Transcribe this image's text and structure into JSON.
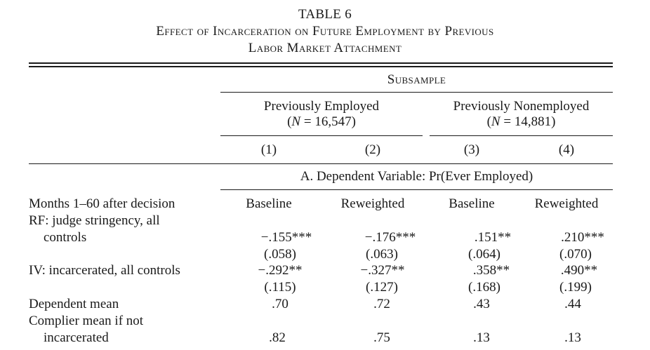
{
  "table": {
    "number": "TABLE 6",
    "caption_line1": "Effect of Incarceration on Future Employment by Previous",
    "caption_line2": "Labor Market Attachment",
    "subsample_header": "Subsample",
    "groups": [
      {
        "label": "Previously Employed",
        "n_prefix": "(",
        "n_var": "N",
        "n_value": " = 16,547)"
      },
      {
        "label": "Previously Nonemployed",
        "n_prefix": "(",
        "n_var": "N",
        "n_value": " = 14,881)"
      }
    ],
    "column_numbers": [
      "(1)",
      "(2)",
      "(3)",
      "(4)"
    ],
    "panel_a_title": "A. Dependent Variable: Pr(Ever Employed)",
    "column_types": [
      "Baseline",
      "Reweighted",
      "Baseline",
      "Reweighted"
    ],
    "rows": {
      "months_label": "Months 1–60 after decision",
      "rf_label_1": "RF: judge stringency, all",
      "rf_label_2": "controls",
      "rf_coef": [
        "−.155***",
        "−.176***",
        ".151**",
        ".210***"
      ],
      "rf_se": [
        "(.058)",
        "(.063)",
        "(.064)",
        "(.070)"
      ],
      "iv_label": "IV: incarcerated, all controls",
      "iv_coef": [
        "−.292**",
        "−.327**",
        ".358**",
        ".490**"
      ],
      "iv_se": [
        "(.115)",
        "(.127)",
        "(.168)",
        "(.199)"
      ],
      "dep_mean_label": "Dependent mean",
      "dep_mean": [
        ".70",
        ".72",
        ".43",
        ".44"
      ],
      "complier_label_1": "Complier mean if not",
      "complier_label_2": "incarcerated",
      "complier_mean": [
        ".82",
        ".75",
        ".13",
        ".13"
      ]
    }
  }
}
